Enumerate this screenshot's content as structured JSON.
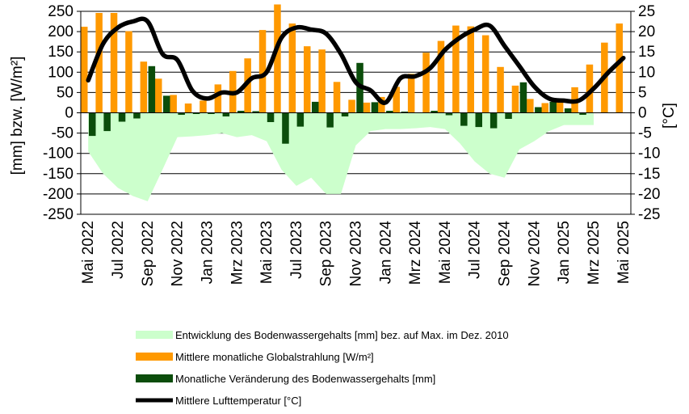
{
  "chart_data": {
    "type": "bar",
    "categories": [
      "Mai 2022",
      "Jun 2022",
      "Jul 2022",
      "Aug 2022",
      "Sep 2022",
      "Okt 2022",
      "Nov 2022",
      "Dez 2022",
      "Jan 2023",
      "Feb 2023",
      "Mrz 2023",
      "Apr 2023",
      "Mai 2023",
      "Jun 2023",
      "Jul 2023",
      "Aug 2023",
      "Sep 2023",
      "Okt 2023",
      "Nov 2023",
      "Dez 2023",
      "Jan 2024",
      "Feb 2024",
      "Mrz 2024",
      "Apr 2024",
      "Mai 2024",
      "Jun 2024",
      "Jul 2024",
      "Aug 2024",
      "Sep 2024",
      "Okt 2024",
      "Nov 2024",
      "Dez 2024",
      "Jan 2025",
      "Feb 2025",
      "Mrz 2025",
      "Apr 2025",
      "Mai 2025"
    ],
    "tick_labels": [
      "Mai 2022",
      "Jul 2022",
      "Sep 2022",
      "Nov 2022",
      "Jan 2023",
      "Mrz 2023",
      "Mai 2023",
      "Jul 2023",
      "Sep 2023",
      "Nov 2023",
      "Jan 2024",
      "Mrz 2024",
      "Mai 2024",
      "Jul 2024",
      "Sep 2024",
      "Nov 2024",
      "Jan 2025",
      "Mrz 2025",
      "Mai 2025"
    ],
    "left_axis": {
      "label": "[mm] bzw. [W/m²]",
      "ylim": [
        -250,
        250
      ],
      "ticks": [
        250,
        200,
        150,
        100,
        50,
        0,
        -50,
        -100,
        -150,
        -200,
        -250
      ]
    },
    "right_axis": {
      "label": "[°C]",
      "ylim": [
        -25,
        25
      ],
      "ticks": [
        25,
        20,
        15,
        10,
        5,
        0,
        -5,
        -10,
        -15,
        -20,
        -25
      ]
    },
    "grid": true,
    "legend_position": "bottom",
    "series": [
      {
        "name": "Entwicklung des Bodenwassergehalts [mm] bez. auf Max. im Dez. 2010",
        "kind": "area",
        "axis": "left",
        "color": "#ccffcc",
        "values": [
          -95,
          -150,
          -185,
          -205,
          -218,
          -140,
          -60,
          -58,
          -55,
          -50,
          -60,
          -55,
          -70,
          -140,
          -180,
          -160,
          -200,
          -200,
          -80,
          -45,
          -40,
          -40,
          -38,
          -35,
          -40,
          -75,
          -120,
          -150,
          -160,
          -90,
          -70,
          -45,
          -30,
          -30,
          -30,
          null,
          null
        ]
      },
      {
        "name": "Mittlere monatliche Globalstrahlung [W/m²]",
        "kind": "bar",
        "axis": "left",
        "color": "#ff9900",
        "values": [
          212,
          246,
          246,
          201,
          126,
          84,
          44,
          23,
          30,
          70,
          103,
          134,
          204,
          267,
          220,
          164,
          156,
          76,
          32,
          25,
          39,
          64,
          96,
          148,
          177,
          215,
          213,
          191,
          113,
          67,
          34,
          24,
          35,
          63,
          119,
          173,
          220
        ]
      },
      {
        "name": "Monatliche Veränderung des Bodenwassergehalts [mm]",
        "kind": "bar",
        "axis": "left",
        "color": "#0b4d0b",
        "values": [
          -57,
          -45,
          -22,
          -14,
          115,
          42,
          -5,
          -3,
          -3,
          -9,
          5,
          4,
          -23,
          -76,
          -34,
          27,
          -36,
          -9,
          123,
          26,
          5,
          3,
          0,
          5,
          -6,
          -32,
          -35,
          -38,
          -15,
          75,
          14,
          27,
          11,
          -5,
          0,
          0,
          0
        ]
      },
      {
        "name": "Mittlere Lufttemperatur [°C]",
        "kind": "line",
        "axis": "right",
        "color": "#000000",
        "values": [
          8,
          17,
          21,
          22.5,
          22.5,
          14.5,
          13,
          5.5,
          3.5,
          5,
          5,
          8.5,
          10,
          18.5,
          21,
          20.5,
          19.5,
          14.5,
          7.5,
          5.5,
          2.5,
          8.5,
          9,
          11,
          15.5,
          18.5,
          20.5,
          21.5,
          16.5,
          11.5,
          6.5,
          3.5,
          3.0,
          3.0,
          6.0,
          10,
          13.5
        ]
      }
    ]
  }
}
